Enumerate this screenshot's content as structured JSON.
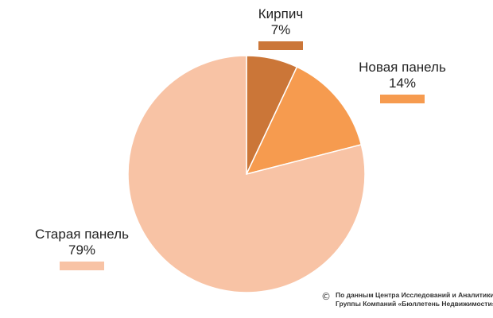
{
  "chart_data": {
    "type": "pie",
    "title": "",
    "slices": [
      {
        "label": "Кирпич",
        "value": 7,
        "value_label": "7%",
        "color": "#CB7638"
      },
      {
        "label": "Новая панель",
        "value": 14,
        "value_label": "14%",
        "color": "#F69B4F"
      },
      {
        "label": "Старая панель",
        "value": 79,
        "value_label": "79%",
        "color": "#F8C3A5"
      }
    ],
    "legend": "labels-around-pie",
    "source": {
      "symbol": "©",
      "line1": "По данным Центра Исследований и Аналитики",
      "line2": "Группы Компаний «Бюллетень Недвижимости»"
    }
  }
}
